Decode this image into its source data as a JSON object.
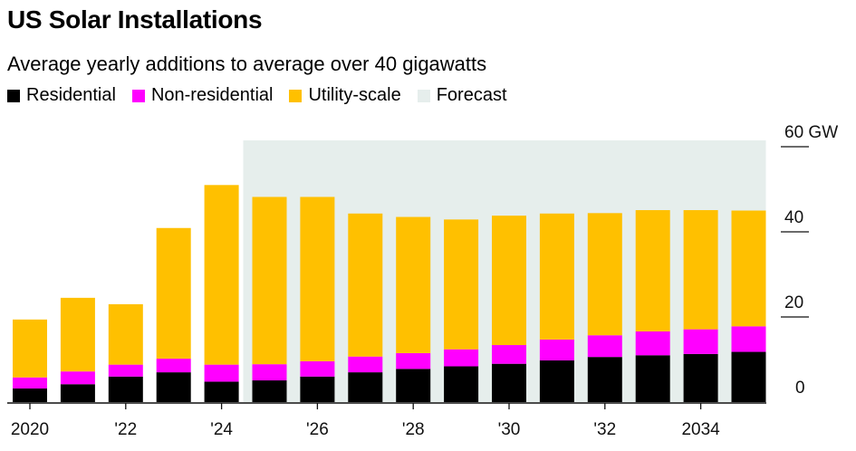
{
  "title": "US Solar Installations",
  "subtitle": "Average yearly additions to average over 40 gigawatts",
  "legend": [
    {
      "label": "Residential",
      "color": "#000000"
    },
    {
      "label": "Non-residential",
      "color": "#ff00ff"
    },
    {
      "label": "Utility-scale",
      "color": "#ffc000"
    },
    {
      "label": "Forecast",
      "color": "#e6eeec"
    }
  ],
  "chart_data": {
    "type": "bar",
    "stacked": true,
    "categories": [
      "2020",
      "2021",
      "2022",
      "2023",
      "2024",
      "2025",
      "2026",
      "2027",
      "2028",
      "2029",
      "2030",
      "2031",
      "2032",
      "2033",
      "2034",
      "2035"
    ],
    "series": [
      {
        "name": "Residential",
        "color": "#000000",
        "values": [
          3.2,
          4.2,
          6.0,
          7.0,
          4.8,
          5.1,
          6.0,
          7.0,
          7.8,
          8.4,
          9.0,
          9.8,
          10.6,
          11.0,
          11.3,
          11.8
        ]
      },
      {
        "name": "Non-residential",
        "color": "#ff00ff",
        "values": [
          2.6,
          3.0,
          2.8,
          3.2,
          4.0,
          3.8,
          3.6,
          3.7,
          3.7,
          4.0,
          4.4,
          4.9,
          5.1,
          5.6,
          5.8,
          6.0
        ]
      },
      {
        "name": "Utility-scale",
        "color": "#ffc000",
        "values": [
          13.6,
          17.3,
          14.2,
          30.7,
          42.2,
          39.3,
          38.6,
          33.6,
          32.0,
          30.5,
          30.4,
          29.6,
          28.7,
          28.5,
          28.0,
          27.2
        ]
      }
    ],
    "forecast": {
      "label": "Forecast",
      "start": "2025",
      "end": "2035",
      "color": "#e6eeec"
    },
    "y_ticks": [
      {
        "value": 0,
        "label": "0"
      },
      {
        "value": 20,
        "label": "20"
      },
      {
        "value": 40,
        "label": "40"
      },
      {
        "value": 60,
        "label": "60 GW"
      }
    ],
    "x_labels": [
      {
        "index": 0,
        "label": "2020"
      },
      {
        "index": 2,
        "label": "'22"
      },
      {
        "index": 4,
        "label": "'24"
      },
      {
        "index": 6,
        "label": "'26"
      },
      {
        "index": 8,
        "label": "'28"
      },
      {
        "index": 10,
        "label": "'30"
      },
      {
        "index": 12,
        "label": "'32"
      },
      {
        "index": 14,
        "label": "2034"
      }
    ],
    "ylim": [
      0,
      60
    ],
    "xlabel": "",
    "ylabel": ""
  }
}
